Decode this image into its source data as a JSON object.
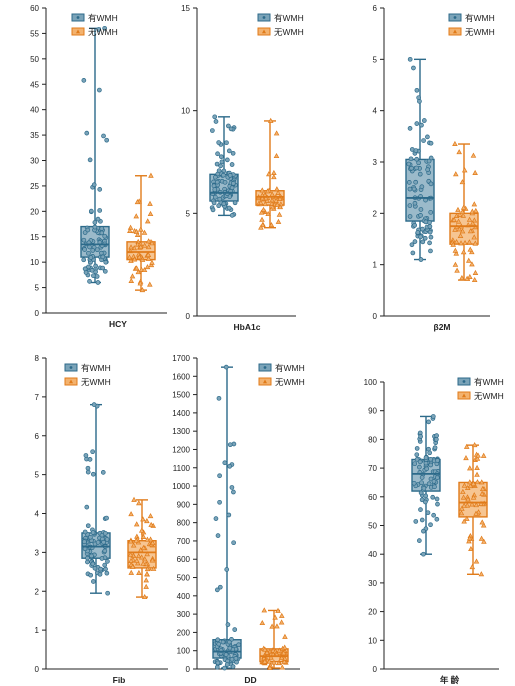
{
  "figure": {
    "legend": {
      "with_label": "有WMH",
      "without_label": "无WMH"
    },
    "colors": {
      "with_fill": "#7aa3b8",
      "with_stroke": "#2c6a8a",
      "without_fill": "#f3b26e",
      "without_stroke": "#e07b1a"
    }
  },
  "chart_data": [
    {
      "type": "box",
      "xlabel": "HCY",
      "ylim": [
        0,
        60
      ],
      "yticks": [
        0,
        5,
        10,
        15,
        20,
        25,
        30,
        35,
        40,
        45,
        50,
        55,
        60
      ],
      "legend_position": "top-right",
      "series": [
        {
          "name": "有WMH",
          "marker": "circle",
          "min": 6,
          "q1": 11,
          "median": 13.5,
          "q3": 17,
          "max": 56
        },
        {
          "name": "无WMH",
          "marker": "triangle",
          "min": 4.5,
          "q1": 10.5,
          "median": 12,
          "q3": 14,
          "max": 27
        }
      ]
    },
    {
      "type": "box",
      "xlabel": "HbA1c",
      "ylim": [
        0,
        15
      ],
      "yticks": [
        0,
        5,
        10,
        15
      ],
      "legend_position": "top-right",
      "series": [
        {
          "name": "有WMH",
          "marker": "circle",
          "min": 4.9,
          "q1": 5.6,
          "median": 6.0,
          "q3": 6.9,
          "max": 9.7
        },
        {
          "name": "无WMH",
          "marker": "triangle",
          "min": 4.3,
          "q1": 5.4,
          "median": 5.8,
          "q3": 6.1,
          "max": 9.5
        }
      ]
    },
    {
      "type": "box",
      "xlabel": "β2M",
      "ylim": [
        0,
        6
      ],
      "yticks": [
        0,
        1,
        2,
        3,
        4,
        5,
        6
      ],
      "legend_position": "top-right",
      "series": [
        {
          "name": "有WMH",
          "marker": "circle",
          "min": 1.1,
          "q1": 1.85,
          "median": 2.3,
          "q3": 3.05,
          "max": 5.0
        },
        {
          "name": "无WMH",
          "marker": "triangle",
          "min": 0.7,
          "q1": 1.4,
          "median": 1.75,
          "q3": 2.0,
          "max": 3.35
        }
      ]
    },
    {
      "type": "box",
      "xlabel": "Fib",
      "ylim": [
        0,
        8
      ],
      "yticks": [
        0,
        1,
        2,
        3,
        4,
        5,
        6,
        7,
        8
      ],
      "legend_position": "top-right",
      "series": [
        {
          "name": "有WMH",
          "marker": "circle",
          "min": 1.95,
          "q1": 2.85,
          "median": 3.15,
          "q3": 3.5,
          "max": 6.8
        },
        {
          "name": "无WMH",
          "marker": "triangle",
          "min": 1.85,
          "q1": 2.6,
          "median": 3.0,
          "q3": 3.3,
          "max": 4.35
        }
      ]
    },
    {
      "type": "box",
      "xlabel": "DD",
      "ylim": [
        0,
        1700
      ],
      "yticks": [
        0,
        100,
        200,
        300,
        400,
        500,
        600,
        700,
        800,
        900,
        1000,
        1100,
        1200,
        1300,
        1400,
        1500,
        1600,
        1700
      ],
      "legend_position": "top-right",
      "series": [
        {
          "name": "有WMH",
          "marker": "circle",
          "min": 5,
          "q1": 60,
          "median": 95,
          "q3": 160,
          "max": 1650
        },
        {
          "name": "无WMH",
          "marker": "triangle",
          "min": 5,
          "q1": 40,
          "median": 70,
          "q3": 110,
          "max": 320
        }
      ]
    },
    {
      "type": "box",
      "xlabel": "年 龄",
      "ylim": [
        0,
        100
      ],
      "yticks": [
        0,
        10,
        20,
        30,
        40,
        50,
        60,
        70,
        80,
        90,
        100
      ],
      "legend_position": "top-right",
      "series": [
        {
          "name": "有WMH",
          "marker": "circle",
          "min": 40,
          "q1": 62,
          "median": 68,
          "q3": 73,
          "max": 88
        },
        {
          "name": "无WMH",
          "marker": "triangle",
          "min": 33,
          "q1": 53,
          "median": 58,
          "q3": 65,
          "max": 78
        }
      ]
    }
  ]
}
